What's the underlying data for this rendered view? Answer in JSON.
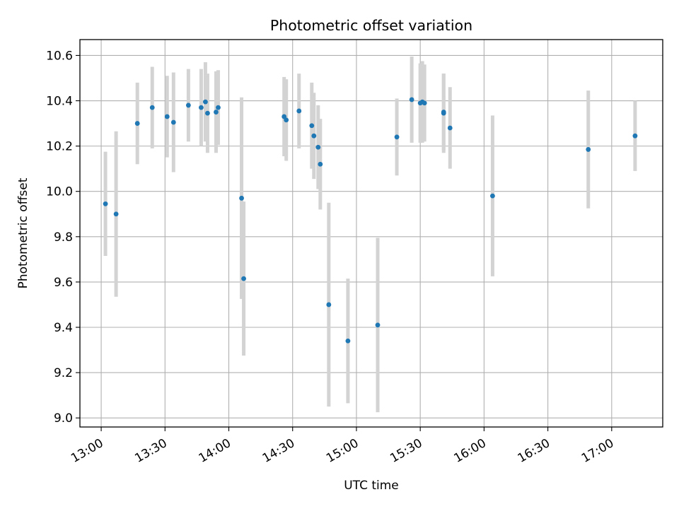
{
  "chart_data": {
    "type": "scatter",
    "title": "Photometric offset variation",
    "xlabel": "UTC time",
    "ylabel": "Photometric offset",
    "x_unit": "UTC time (HH:MM)",
    "xlim": [
      "12:50",
      "17:24"
    ],
    "ylim": [
      8.96,
      10.67
    ],
    "x_ticks": [
      "13:00",
      "13:30",
      "14:00",
      "14:30",
      "15:00",
      "15:30",
      "16:00",
      "16:30",
      "17:00"
    ],
    "y_ticks": [
      "9.0",
      "9.2",
      "9.4",
      "9.6",
      "9.8",
      "10.0",
      "10.2",
      "10.4",
      "10.6"
    ],
    "grid": true,
    "marker_color": "#1f77b4",
    "errorbar_color": "#d3d3d3",
    "points": [
      {
        "x": "13:02",
        "y": 9.945,
        "err": 0.23
      },
      {
        "x": "13:07",
        "y": 9.9,
        "err": 0.365
      },
      {
        "x": "13:17",
        "y": 10.3,
        "err": 0.18
      },
      {
        "x": "13:24",
        "y": 10.37,
        "err": 0.18
      },
      {
        "x": "13:31",
        "y": 10.33,
        "err": 0.18
      },
      {
        "x": "13:34",
        "y": 10.305,
        "err": 0.22
      },
      {
        "x": "13:41",
        "y": 10.38,
        "err": 0.16
      },
      {
        "x": "13:47",
        "y": 10.37,
        "err": 0.17
      },
      {
        "x": "13:49",
        "y": 10.395,
        "err": 0.175
      },
      {
        "x": "13:50",
        "y": 10.345,
        "err": 0.175
      },
      {
        "x": "13:54",
        "y": 10.35,
        "err": 0.18
      },
      {
        "x": "13:55",
        "y": 10.37,
        "err": 0.165
      },
      {
        "x": "14:06",
        "y": 9.97,
        "err": 0.445
      },
      {
        "x": "14:07",
        "y": 9.615,
        "err": 0.34
      },
      {
        "x": "14:26",
        "y": 10.33,
        "err": 0.175
      },
      {
        "x": "14:27",
        "y": 10.315,
        "err": 0.18
      },
      {
        "x": "14:33",
        "y": 10.355,
        "err": 0.165
      },
      {
        "x": "14:39",
        "y": 10.29,
        "err": 0.19
      },
      {
        "x": "14:40",
        "y": 10.245,
        "err": 0.19
      },
      {
        "x": "14:42",
        "y": 10.195,
        "err": 0.185
      },
      {
        "x": "14:43",
        "y": 10.12,
        "err": 0.2
      },
      {
        "x": "14:47",
        "y": 9.5,
        "err": 0.45
      },
      {
        "x": "14:56",
        "y": 9.34,
        "err": 0.275
      },
      {
        "x": "15:10",
        "y": 9.41,
        "err": 0.385
      },
      {
        "x": "15:19",
        "y": 10.24,
        "err": 0.17
      },
      {
        "x": "15:26",
        "y": 10.405,
        "err": 0.19
      },
      {
        "x": "15:30",
        "y": 10.39,
        "err": 0.175
      },
      {
        "x": "15:31",
        "y": 10.395,
        "err": 0.18
      },
      {
        "x": "15:32",
        "y": 10.39,
        "err": 0.17
      },
      {
        "x": "15:41",
        "y": 10.345,
        "err": 0.175
      },
      {
        "x": "15:41",
        "y": 10.35,
        "err": 0.17
      },
      {
        "x": "15:44",
        "y": 10.28,
        "err": 0.18
      },
      {
        "x": "16:04",
        "y": 9.98,
        "err": 0.355
      },
      {
        "x": "16:49",
        "y": 10.185,
        "err": 0.26
      },
      {
        "x": "17:11",
        "y": 10.245,
        "err": 0.155
      }
    ]
  }
}
